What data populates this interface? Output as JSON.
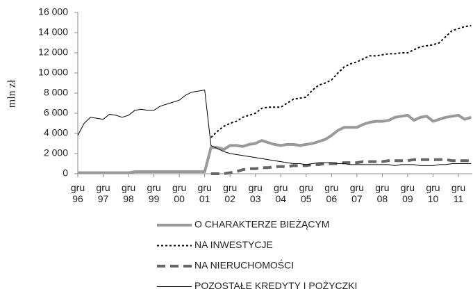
{
  "chart_data": {
    "type": "line",
    "y_label": "mln zł",
    "ylim": [
      0,
      16000
    ],
    "yticks": [
      {
        "value": 0,
        "label": "0"
      },
      {
        "value": 2000,
        "label": "2 000"
      },
      {
        "value": 4000,
        "label": "4 000"
      },
      {
        "value": 6000,
        "label": "6 000"
      },
      {
        "value": 8000,
        "label": "8 000"
      },
      {
        "value": 10000,
        "label": "10 000"
      },
      {
        "value": 12000,
        "label": "12 000"
      },
      {
        "value": 14000,
        "label": "14 000"
      },
      {
        "value": 16000,
        "label": "16 000"
      }
    ],
    "categories": [
      "gru 96",
      null,
      null,
      null,
      "gru 97",
      null,
      null,
      null,
      "gru 98",
      null,
      null,
      null,
      "gru 99",
      null,
      null,
      null,
      "gru 00",
      null,
      null,
      null,
      "gru 01",
      null,
      null,
      null,
      "gru 02",
      null,
      null,
      null,
      "gru 03",
      null,
      null,
      null,
      "gru 04",
      null,
      null,
      null,
      "gru 05",
      null,
      null,
      null,
      "gru 06",
      null,
      null,
      null,
      "gru 07",
      null,
      null,
      null,
      "gru 08",
      null,
      null,
      null,
      "gru 09",
      null,
      null,
      null,
      "gru 10",
      null,
      null,
      null,
      "gru 11",
      null,
      null
    ],
    "series": [
      {
        "name": "O CHARAKTERZE BIEŻĄCYM",
        "color": "#999999",
        "values": [
          100,
          100,
          100,
          100,
          100,
          100,
          100,
          100,
          100,
          200,
          200,
          200,
          200,
          200,
          200,
          200,
          200,
          200,
          200,
          200,
          200,
          2600,
          2600,
          2400,
          2800,
          2800,
          2700,
          2900,
          3000,
          3300,
          3100,
          2900,
          2800,
          2900,
          2900,
          2800,
          2900,
          3000,
          3200,
          3400,
          3800,
          4300,
          4600,
          4600,
          4600,
          4900,
          5100,
          5200,
          5200,
          5300,
          5600,
          5700,
          5800,
          5300,
          5600,
          5700,
          5200,
          5400,
          5600,
          5700,
          5800,
          5400,
          5600
        ]
      },
      {
        "name": "NA INWESTYCJE",
        "color": "#000000",
        "values": [
          null,
          null,
          null,
          null,
          null,
          null,
          null,
          null,
          null,
          null,
          null,
          null,
          null,
          null,
          null,
          null,
          null,
          null,
          null,
          null,
          null,
          3600,
          4200,
          4700,
          5000,
          5200,
          5600,
          5800,
          6000,
          6500,
          6600,
          6600,
          6600,
          7000,
          7400,
          7500,
          7600,
          8300,
          8800,
          9000,
          9300,
          10000,
          10600,
          10900,
          11100,
          11400,
          11700,
          11700,
          11800,
          11900,
          11900,
          12000,
          12000,
          12300,
          12600,
          12700,
          12800,
          13000,
          13600,
          14200,
          14400,
          14600,
          14700
        ]
      },
      {
        "name": "NA NIERUCHOMOŚCI",
        "color": "#666666",
        "values": [
          null,
          null,
          null,
          null,
          null,
          null,
          null,
          null,
          null,
          null,
          null,
          null,
          null,
          null,
          null,
          null,
          null,
          null,
          null,
          null,
          null,
          0,
          0,
          0,
          100,
          200,
          400,
          500,
          500,
          600,
          600,
          700,
          700,
          700,
          800,
          800,
          800,
          900,
          900,
          1000,
          1000,
          1000,
          1100,
          1100,
          1100,
          1200,
          1200,
          1200,
          1200,
          1300,
          1300,
          1300,
          1300,
          1400,
          1400,
          1400,
          1400,
          1400,
          1400,
          1300,
          1300,
          1300,
          1300
        ]
      },
      {
        "name": "POZOSTAŁE KREDYTY I POŻYCZKI",
        "color": "#000000",
        "values": [
          3800,
          5000,
          5600,
          5500,
          5400,
          5900,
          5800,
          5600,
          5800,
          6300,
          6400,
          6300,
          6300,
          6700,
          6900,
          7100,
          7300,
          7800,
          8100,
          8200,
          8300,
          2800,
          2500,
          2200,
          2000,
          1900,
          1800,
          1700,
          1600,
          1500,
          1400,
          1300,
          1200,
          1100,
          1000,
          1000,
          900,
          1000,
          1100,
          1100,
          1100,
          1000,
          1000,
          900,
          900,
          900,
          900,
          900,
          900,
          900,
          800,
          900,
          900,
          900,
          800,
          800,
          800,
          900,
          900,
          1000,
          1000,
          1000,
          1000
        ]
      }
    ]
  }
}
